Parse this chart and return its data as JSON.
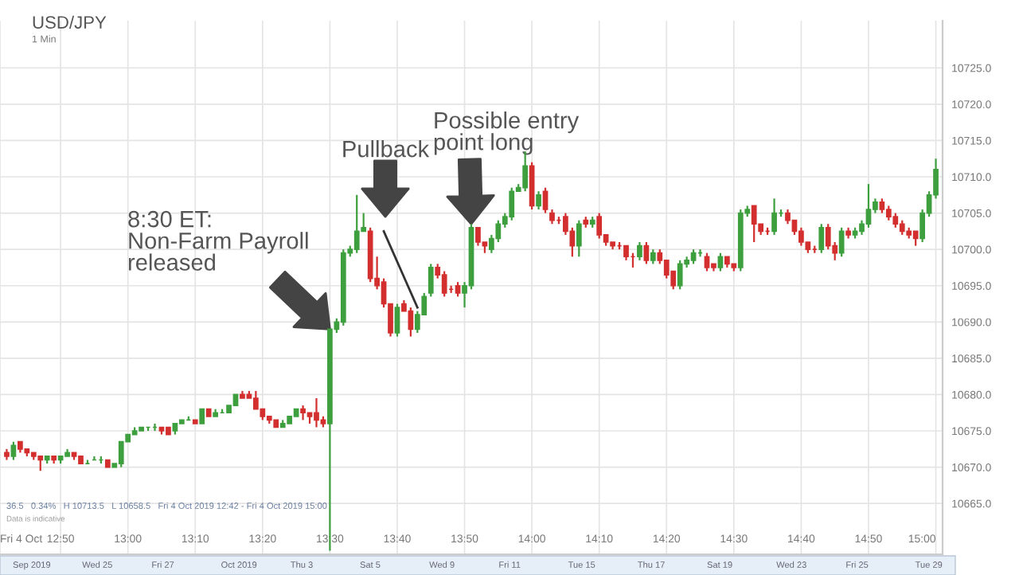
{
  "chart_data": {
    "type": "candlestick",
    "title": "USD/JPY",
    "subtitle": "1 Min",
    "x": [
      "2019-10-04T12:42",
      "2019-10-04T12:43",
      "2019-10-04T12:44",
      "2019-10-04T12:45",
      "2019-10-04T12:46",
      "2019-10-04T12:47",
      "2019-10-04T12:48",
      "2019-10-04T12:49",
      "2019-10-04T12:50",
      "2019-10-04T12:51",
      "2019-10-04T12:52",
      "2019-10-04T12:53",
      "2019-10-04T12:54",
      "2019-10-04T12:55",
      "2019-10-04T12:56",
      "2019-10-04T12:57",
      "2019-10-04T12:58",
      "2019-10-04T12:59",
      "2019-10-04T13:00",
      "2019-10-04T13:01",
      "2019-10-04T13:02",
      "2019-10-04T13:03",
      "2019-10-04T13:04",
      "2019-10-04T13:05",
      "2019-10-04T13:06",
      "2019-10-04T13:07",
      "2019-10-04T13:08",
      "2019-10-04T13:09",
      "2019-10-04T13:10",
      "2019-10-04T13:11",
      "2019-10-04T13:12",
      "2019-10-04T13:13",
      "2019-10-04T13:14",
      "2019-10-04T13:15",
      "2019-10-04T13:16",
      "2019-10-04T13:17",
      "2019-10-04T13:18",
      "2019-10-04T13:19",
      "2019-10-04T13:20",
      "2019-10-04T13:21",
      "2019-10-04T13:22",
      "2019-10-04T13:23",
      "2019-10-04T13:24",
      "2019-10-04T13:25",
      "2019-10-04T13:26",
      "2019-10-04T13:27",
      "2019-10-04T13:28",
      "2019-10-04T13:29",
      "2019-10-04T13:30",
      "2019-10-04T13:31",
      "2019-10-04T13:32",
      "2019-10-04T13:33",
      "2019-10-04T13:34",
      "2019-10-04T13:35",
      "2019-10-04T13:36",
      "2019-10-04T13:37",
      "2019-10-04T13:38",
      "2019-10-04T13:39",
      "2019-10-04T13:40",
      "2019-10-04T13:41",
      "2019-10-04T13:42",
      "2019-10-04T13:43",
      "2019-10-04T13:44",
      "2019-10-04T13:45",
      "2019-10-04T13:46",
      "2019-10-04T13:47",
      "2019-10-04T13:48",
      "2019-10-04T13:49",
      "2019-10-04T13:50",
      "2019-10-04T13:51",
      "2019-10-04T13:52",
      "2019-10-04T13:53",
      "2019-10-04T13:54",
      "2019-10-04T13:55",
      "2019-10-04T13:56",
      "2019-10-04T13:57",
      "2019-10-04T13:58",
      "2019-10-04T13:59",
      "2019-10-04T14:00",
      "2019-10-04T14:01",
      "2019-10-04T14:02",
      "2019-10-04T14:03",
      "2019-10-04T14:04",
      "2019-10-04T14:05",
      "2019-10-04T14:06",
      "2019-10-04T14:07",
      "2019-10-04T14:08",
      "2019-10-04T14:09",
      "2019-10-04T14:10",
      "2019-10-04T14:11",
      "2019-10-04T14:12",
      "2019-10-04T14:13",
      "2019-10-04T14:14",
      "2019-10-04T14:15",
      "2019-10-04T14:16",
      "2019-10-04T14:17",
      "2019-10-04T14:18",
      "2019-10-04T14:19",
      "2019-10-04T14:20",
      "2019-10-04T14:21",
      "2019-10-04T14:22",
      "2019-10-04T14:23",
      "2019-10-04T14:24",
      "2019-10-04T14:25",
      "2019-10-04T14:26",
      "2019-10-04T14:27",
      "2019-10-04T14:28",
      "2019-10-04T14:29",
      "2019-10-04T14:30",
      "2019-10-04T14:31",
      "2019-10-04T14:32",
      "2019-10-04T14:33",
      "2019-10-04T14:34",
      "2019-10-04T14:35",
      "2019-10-04T14:36",
      "2019-10-04T14:37",
      "2019-10-04T14:38",
      "2019-10-04T14:39",
      "2019-10-04T14:40",
      "2019-10-04T14:41",
      "2019-10-04T14:42",
      "2019-10-04T14:43",
      "2019-10-04T14:44",
      "2019-10-04T14:45",
      "2019-10-04T14:46",
      "2019-10-04T14:47",
      "2019-10-04T14:48",
      "2019-10-04T14:49",
      "2019-10-04T14:50",
      "2019-10-04T14:51",
      "2019-10-04T14:52",
      "2019-10-04T14:53",
      "2019-10-04T14:54",
      "2019-10-04T14:55",
      "2019-10-04T14:56",
      "2019-10-04T14:57",
      "2019-10-04T14:58",
      "2019-10-04T14:59",
      "2019-10-04T15:00"
    ],
    "ohlc": [
      [
        10672,
        10672.5,
        10671,
        10671.5
      ],
      [
        10671.5,
        10673.5,
        10671,
        10673
      ],
      [
        10673.5,
        10673.5,
        10672,
        10672.5
      ],
      [
        10672.5,
        10672.5,
        10671.5,
        10672
      ],
      [
        10672,
        10672,
        10671,
        10671.5
      ],
      [
        10671.5,
        10671.5,
        10669.5,
        10671
      ],
      [
        10671,
        10671.5,
        10670.5,
        10671.5
      ],
      [
        10671.5,
        10671.5,
        10670.5,
        10671
      ],
      [
        10671,
        10671.5,
        10670.5,
        10671.5
      ],
      [
        10671.5,
        10672.5,
        10671.5,
        10672
      ],
      [
        10672,
        10672,
        10671,
        10671.5
      ],
      [
        10671.5,
        10671.5,
        10670.5,
        10670.5
      ],
      [
        10670.5,
        10671,
        10670.5,
        10670.5
      ],
      [
        10671,
        10671.5,
        10671,
        10671
      ],
      [
        10671,
        10671.5,
        10670.5,
        10671
      ],
      [
        10671,
        10671,
        10670,
        10670
      ],
      [
        10670,
        10670.5,
        10670,
        10670.5
      ],
      [
        10670.5,
        10673.5,
        10670,
        10673.5
      ],
      [
        10673.5,
        10674.5,
        10673.5,
        10674.5
      ],
      [
        10674.5,
        10675.5,
        10674.5,
        10675
      ],
      [
        10675,
        10675.5,
        10675,
        10675.5
      ],
      [
        10675.5,
        10675.5,
        10675,
        10675.5
      ],
      [
        10675.5,
        10676,
        10675,
        10675.5
      ],
      [
        10675.5,
        10675.5,
        10674.5,
        10675
      ],
      [
        10675.5,
        10675.5,
        10674.5,
        10674.5
      ],
      [
        10675,
        10676,
        10674.5,
        10676
      ],
      [
        10676,
        10676.5,
        10676,
        10676.5
      ],
      [
        10676.5,
        10677,
        10676.5,
        10676.5
      ],
      [
        10676.5,
        10676.5,
        10676,
        10676
      ],
      [
        10676,
        10678,
        10676,
        10678
      ],
      [
        10678,
        10678,
        10677,
        10677
      ],
      [
        10677,
        10678,
        10677,
        10677.5
      ],
      [
        10677.5,
        10678,
        10677.5,
        10677.5
      ],
      [
        10677.5,
        10678.5,
        10677.5,
        10678.5
      ],
      [
        10678.5,
        10680,
        10678.5,
        10680
      ],
      [
        10680,
        10680.5,
        10679.5,
        10679.5
      ],
      [
        10680,
        10680.5,
        10679.5,
        10679.5
      ],
      [
        10679.5,
        10680.5,
        10678,
        10678
      ],
      [
        10678,
        10678,
        10676.5,
        10677
      ],
      [
        10677,
        10677,
        10676,
        10676.5
      ],
      [
        10676.5,
        10676.5,
        10675.5,
        10675.5
      ],
      [
        10675.5,
        10676.5,
        10675.5,
        10676
      ],
      [
        10676,
        10677,
        10676,
        10677
      ],
      [
        10677,
        10678,
        10677,
        10678
      ],
      [
        10678,
        10678.5,
        10676.5,
        10677.5
      ],
      [
        10677.5,
        10677.5,
        10676,
        10677
      ],
      [
        10677.5,
        10679.5,
        10675.5,
        10676.5
      ],
      [
        10676.5,
        10677,
        10675.5,
        10676
      ],
      [
        10676,
        10689,
        10658.5,
        10689
      ],
      [
        10689,
        10690.5,
        10688.5,
        10690
      ],
      [
        10690,
        10700,
        10689.5,
        10699.5
      ],
      [
        10699.5,
        10700.5,
        10699,
        10700
      ],
      [
        10700,
        10707.5,
        10699.5,
        10702.5
      ],
      [
        10702.5,
        10705,
        10702.5,
        10703
      ],
      [
        10702.5,
        10703,
        10695.5,
        10696
      ],
      [
        10696,
        10699,
        10694.5,
        10695
      ],
      [
        10695.5,
        10696,
        10692,
        10692.5
      ],
      [
        10692.5,
        10692.5,
        10688,
        10688.5
      ],
      [
        10688.5,
        10692.5,
        10688,
        10692
      ],
      [
        10692.5,
        10693,
        10691.5,
        10691.5
      ],
      [
        10691.5,
        10692,
        10688,
        10689
      ],
      [
        10689,
        10691.5,
        10688.5,
        10691
      ],
      [
        10691,
        10694,
        10691,
        10693.5
      ],
      [
        10694,
        10698,
        10693.5,
        10697.5
      ],
      [
        10697.5,
        10698,
        10696,
        10696.5
      ],
      [
        10696.5,
        10697,
        10693.5,
        10694
      ],
      [
        10694.5,
        10695,
        10694,
        10694.5
      ],
      [
        10695,
        10695.5,
        10693.5,
        10694
      ],
      [
        10694,
        10695.5,
        10692,
        10695
      ],
      [
        10695,
        10703.5,
        10694.5,
        10703
      ],
      [
        10703,
        10703,
        10700.5,
        10701
      ],
      [
        10701,
        10701,
        10699.5,
        10700.5
      ],
      [
        10700,
        10702,
        10699.5,
        10701.5
      ],
      [
        10701.5,
        10704,
        10701,
        10703.5
      ],
      [
        10703.5,
        10705,
        10703,
        10704.5
      ],
      [
        10704.5,
        10708.5,
        10704,
        10708
      ],
      [
        10708,
        10709,
        10708,
        10708.5
      ],
      [
        10708.5,
        10713.5,
        10708,
        10711.5
      ],
      [
        10711.5,
        10712,
        10705.5,
        10706
      ],
      [
        10706,
        10708,
        10705.5,
        10707.5
      ],
      [
        10708,
        10708.5,
        10705,
        10705.5
      ],
      [
        10705,
        10705.5,
        10703.5,
        10704
      ],
      [
        10704,
        10704.5,
        10703.5,
        10704
      ],
      [
        10704.5,
        10705,
        10702,
        10702.5
      ],
      [
        10702.5,
        10703,
        10699,
        10700.5
      ],
      [
        10700.5,
        10704,
        10699,
        10703.5
      ],
      [
        10704,
        10704.5,
        10703,
        10703.5
      ],
      [
        10703.5,
        10704.5,
        10703,
        10704
      ],
      [
        10704.5,
        10705,
        10701.5,
        10702
      ],
      [
        10702,
        10702,
        10700.5,
        10701
      ],
      [
        10701,
        10701,
        10700,
        10700.5
      ],
      [
        10700.5,
        10701,
        10700,
        10700.5
      ],
      [
        10700.5,
        10700.5,
        10698.5,
        10699
      ],
      [
        10699,
        10699.5,
        10697.5,
        10699
      ],
      [
        10699,
        10701,
        10698.5,
        10700.5
      ],
      [
        10700.5,
        10701,
        10698,
        10698.5
      ],
      [
        10698.5,
        10700,
        10698,
        10699.5
      ],
      [
        10699.5,
        10700,
        10698,
        10698.5
      ],
      [
        10698.5,
        10698.5,
        10696,
        10696.5
      ],
      [
        10697,
        10697,
        10694.5,
        10695
      ],
      [
        10695,
        10698.5,
        10694.5,
        10698
      ],
      [
        10698,
        10699,
        10697.5,
        10698.5
      ],
      [
        10698.5,
        10700,
        10698,
        10699.5
      ],
      [
        10699.5,
        10700,
        10699,
        10699.5
      ],
      [
        10699,
        10699.5,
        10697,
        10697.5
      ],
      [
        10698,
        10698,
        10697,
        10697.5
      ],
      [
        10697.5,
        10699.5,
        10697,
        10699
      ],
      [
        10699,
        10699,
        10697.5,
        10698
      ],
      [
        10698,
        10698,
        10697,
        10697.5
      ],
      [
        10697.5,
        10705.5,
        10697,
        10705
      ],
      [
        10705,
        10706,
        10704.5,
        10705.5
      ],
      [
        10706,
        10706,
        10701,
        10703.5
      ],
      [
        10703.5,
        10703.5,
        10702,
        10702.5
      ],
      [
        10702.5,
        10703,
        10702,
        10702.5
      ],
      [
        10702.5,
        10707,
        10702,
        10705
      ],
      [
        10705,
        10705.5,
        10704.5,
        10705
      ],
      [
        10705,
        10705.5,
        10703.5,
        10704
      ],
      [
        10704,
        10704,
        10702,
        10702.5
      ],
      [
        10702.5,
        10703,
        10700.5,
        10701
      ],
      [
        10701,
        10701,
        10699.5,
        10700
      ],
      [
        10700,
        10700.5,
        10699.5,
        10700
      ],
      [
        10700,
        10703.5,
        10699.5,
        10703
      ],
      [
        10703,
        10703.5,
        10700,
        10700.5
      ],
      [
        10700.5,
        10701,
        10698.5,
        10699.5
      ],
      [
        10699.5,
        10703,
        10699,
        10702.5
      ],
      [
        10702.5,
        10703,
        10701.5,
        10702
      ],
      [
        10702,
        10703,
        10701.5,
        10702.5
      ],
      [
        10702.5,
        10704,
        10702,
        10703.5
      ],
      [
        10703.5,
        10709,
        10703,
        10705.5
      ],
      [
        10705.5,
        10707,
        10705,
        10706.5
      ],
      [
        10706.5,
        10707,
        10705,
        10705.5
      ],
      [
        10705.5,
        10706,
        10704,
        10704.5
      ],
      [
        10704.5,
        10705,
        10703,
        10703.5
      ],
      [
        10703.5,
        10704,
        10702,
        10702.5
      ],
      [
        10702.5,
        10703,
        10701.5,
        10702
      ],
      [
        10702.5,
        10702.5,
        10700.5,
        10701.5
      ],
      [
        10701.5,
        10705.5,
        10701,
        10705
      ],
      [
        10705,
        10708,
        10704.5,
        10707.5
      ],
      [
        10707.5,
        10712.5,
        10707,
        10711
      ]
    ],
    "colors": [
      "#d32f2f",
      "#3e9f3e",
      "#d32f2f",
      "#d32f2f",
      "#d32f2f",
      "#d32f2f",
      "#3e9f3e",
      "#d32f2f",
      "#3e9f3e",
      "#3e9f3e",
      "#d32f2f",
      "#d32f2f",
      "#3e9f3e",
      "#3e9f3e",
      "#3e9f3e",
      "#d32f2f",
      "#3e9f3e",
      "#3e9f3e",
      "#3e9f3e",
      "#3e9f3e",
      "#3e9f3e",
      "#3e9f3e",
      "#3e9f3e",
      "#d32f2f",
      "#d32f2f",
      "#3e9f3e",
      "#3e9f3e",
      "#3e9f3e",
      "#d32f2f",
      "#3e9f3e",
      "#d32f2f",
      "#3e9f3e",
      "#3e9f3e",
      "#3e9f3e",
      "#3e9f3e",
      "#d32f2f",
      "#d32f2f",
      "#d32f2f",
      "#d32f2f",
      "#d32f2f",
      "#d32f2f",
      "#3e9f3e",
      "#3e9f3e",
      "#3e9f3e",
      "#d32f2f",
      "#d32f2f",
      "#d32f2f",
      "#d32f2f",
      "#3e9f3e",
      "#3e9f3e",
      "#3e9f3e",
      "#3e9f3e",
      "#3e9f3e",
      "#3e9f3e",
      "#d32f2f",
      "#d32f2f",
      "#d32f2f",
      "#d32f2f",
      "#3e9f3e",
      "#d32f2f",
      "#d32f2f",
      "#3e9f3e",
      "#3e9f3e",
      "#3e9f3e",
      "#d32f2f",
      "#d32f2f",
      "#d32f2f",
      "#d32f2f",
      "#3e9f3e",
      "#3e9f3e",
      "#d32f2f",
      "#d32f2f",
      "#3e9f3e",
      "#3e9f3e",
      "#3e9f3e",
      "#3e9f3e",
      "#3e9f3e",
      "#3e9f3e",
      "#d32f2f",
      "#3e9f3e",
      "#d32f2f",
      "#d32f2f",
      "#d32f2f",
      "#d32f2f",
      "#d32f2f",
      "#3e9f3e",
      "#d32f2f",
      "#3e9f3e",
      "#d32f2f",
      "#d32f2f",
      "#d32f2f",
      "#d32f2f",
      "#d32f2f",
      "#d32f2f",
      "#3e9f3e",
      "#d32f2f",
      "#3e9f3e",
      "#d32f2f",
      "#d32f2f",
      "#d32f2f",
      "#3e9f3e",
      "#3e9f3e",
      "#3e9f3e",
      "#3e9f3e",
      "#d32f2f",
      "#d32f2f",
      "#3e9f3e",
      "#d32f2f",
      "#d32f2f",
      "#3e9f3e",
      "#3e9f3e",
      "#d32f2f",
      "#d32f2f",
      "#d32f2f",
      "#3e9f3e",
      "#3e9f3e",
      "#d32f2f",
      "#d32f2f",
      "#d32f2f",
      "#d32f2f",
      "#d32f2f",
      "#3e9f3e",
      "#d32f2f",
      "#d32f2f",
      "#3e9f3e",
      "#d32f2f",
      "#3e9f3e",
      "#3e9f3e",
      "#3e9f3e",
      "#3e9f3e",
      "#d32f2f",
      "#d32f2f",
      "#d32f2f",
      "#d32f2f",
      "#d32f2f",
      "#d32f2f",
      "#3e9f3e",
      "#3e9f3e",
      "#3e9f3e"
    ],
    "series": [
      {
        "type": "line",
        "color": "#333333",
        "x": [
          "2019-10-04T13:38",
          "2019-10-04T13:43"
        ],
        "values": [
          10702.5,
          10692
        ]
      }
    ],
    "xlim": [
      "2019-10-04T12:41",
      "2019-10-04T15:01"
    ],
    "xticks": [
      {
        "value": "2019-10-04T12:41",
        "label": "Fri 4 Oct"
      },
      {
        "value": "2019-10-04T12:50",
        "label": "12:50"
      },
      {
        "value": "2019-10-04T13:00",
        "label": "13:00"
      },
      {
        "value": "2019-10-04T13:10",
        "label": "13:10"
      },
      {
        "value": "2019-10-04T13:20",
        "label": "13:20"
      },
      {
        "value": "2019-10-04T13:30",
        "label": "13:30"
      },
      {
        "value": "2019-10-04T13:40",
        "label": "13:40"
      },
      {
        "value": "2019-10-04T13:50",
        "label": "13:50"
      },
      {
        "value": "2019-10-04T14:00",
        "label": "14:00"
      },
      {
        "value": "2019-10-04T14:10",
        "label": "14:10"
      },
      {
        "value": "2019-10-04T14:20",
        "label": "14:20"
      },
      {
        "value": "2019-10-04T14:30",
        "label": "14:30"
      },
      {
        "value": "2019-10-04T14:40",
        "label": "14:40"
      },
      {
        "value": "2019-10-04T14:50",
        "label": "14:50"
      },
      {
        "value": "2019-10-04T15:00",
        "label": "15:00"
      }
    ],
    "ylim": [
      10658,
      10731.5
    ],
    "yticks": [
      {
        "value": 10665,
        "label": "10665.0"
      },
      {
        "value": 10670,
        "label": "10670.0"
      },
      {
        "value": 10675,
        "label": "10675.0"
      },
      {
        "value": 10680,
        "label": "10680.0"
      },
      {
        "value": 10685,
        "label": "10685.0"
      },
      {
        "value": 10690,
        "label": "10690.0"
      },
      {
        "value": 10695,
        "label": "10695.0"
      },
      {
        "value": 10700,
        "label": "10700.0"
      },
      {
        "value": 10705,
        "label": "10705.0"
      },
      {
        "value": 10710,
        "label": "10710.0"
      },
      {
        "value": 10715,
        "label": "10715.0"
      },
      {
        "value": 10720,
        "label": "10720.0"
      },
      {
        "value": 10725,
        "label": "10725.0"
      }
    ],
    "grid": true,
    "annotations": [
      {
        "text": "8:30 ET:\nNon-Farm Payroll\nreleased",
        "x": "2019-10-04T13:30",
        "y": 10689
      },
      "Pullback",
      {
        "text": "Possible entry\npoint long",
        "x": "2019-10-04T13:51",
        "y": 10703.5
      },
      "36.5   0.34%   H 10713.5   L 10658.5   Fri 4 Oct 2019 12:42 - Fri 4 Oct 2019 15:00",
      "Data is indicative",
      "Sep 2019",
      "Wed 25",
      "Fri 27",
      "Oct 2019",
      "Thu 3",
      "Sat 5",
      "Wed 9",
      "Fri 11",
      "Tue 15",
      "Thu 17",
      "Sat 19",
      "Wed 23",
      "Fri 25",
      "Tue 29"
    ]
  }
}
